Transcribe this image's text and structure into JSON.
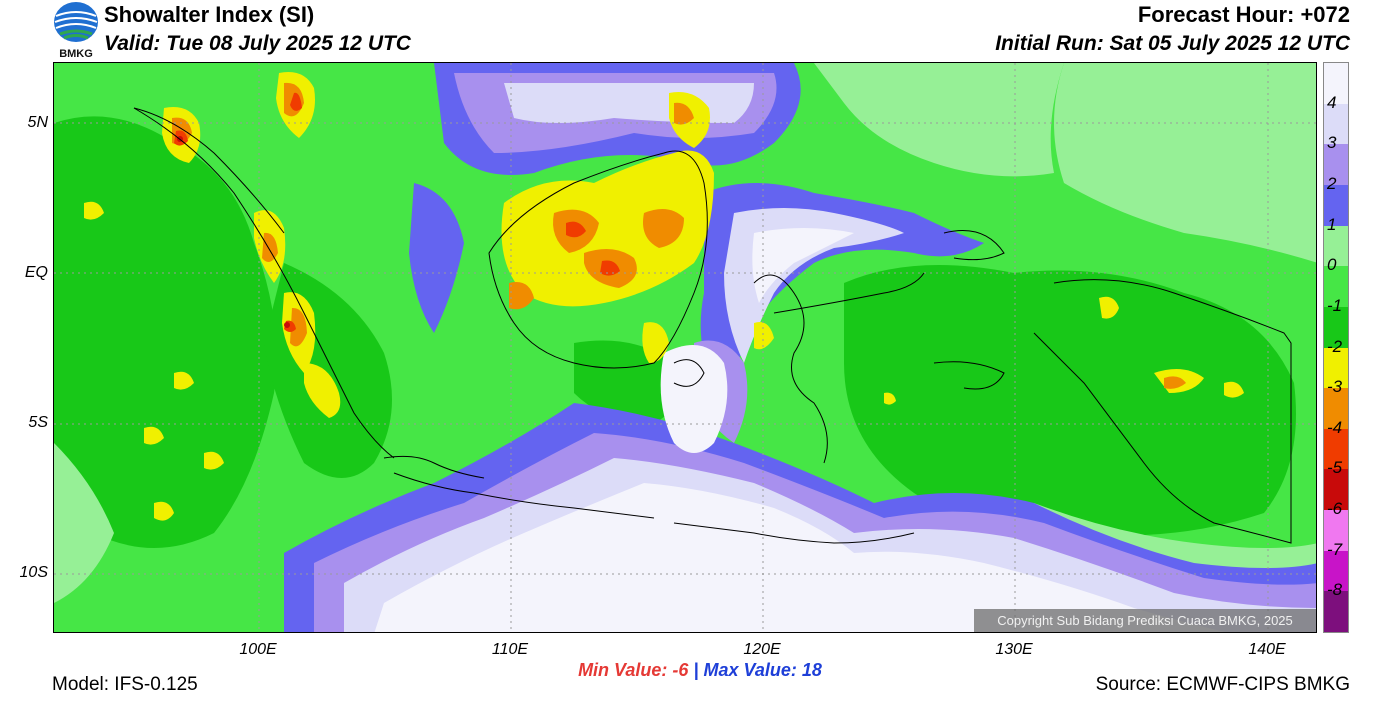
{
  "header": {
    "title": "Showalter Index (SI)",
    "valid": "Valid: Tue 08 July 2025 12 UTC",
    "forecast_hour": "Forecast Hour: +072",
    "initial_run": "Initial Run: Sat 05 July 2025 12 UTC"
  },
  "logo": {
    "text": "BMKG"
  },
  "axes": {
    "lat_labels": [
      "5N",
      "EQ",
      "5S",
      "10S"
    ],
    "lon_labels": [
      "100E",
      "110E",
      "120E",
      "130E",
      "140E"
    ]
  },
  "colorbar": {
    "labels": [
      "4",
      "3",
      "2",
      "1",
      "0",
      "-1",
      "-2",
      "-3",
      "-4",
      "-5",
      "-6",
      "-7",
      "-8"
    ],
    "colors": [
      "#f4f4fc",
      "#dcdcf8",
      "#a890ee",
      "#6464f0",
      "#96f096",
      "#46e646",
      "#18c818",
      "#f0f000",
      "#f08c00",
      "#f03c00",
      "#c80a0a",
      "#f078f0",
      "#c814c8",
      "#7d0f7d"
    ]
  },
  "stats": {
    "min_label": "Min Value:",
    "min_value": "-6",
    "separator": "|",
    "max_label": "Max Value:",
    "max_value": "18"
  },
  "footer": {
    "model": "Model: IFS-0.125",
    "source": "Source: ECMWF-CIPS BMKG",
    "copyright": "Copyright Sub Bidang Prediksi Cuaca BMKG, 2025"
  }
}
